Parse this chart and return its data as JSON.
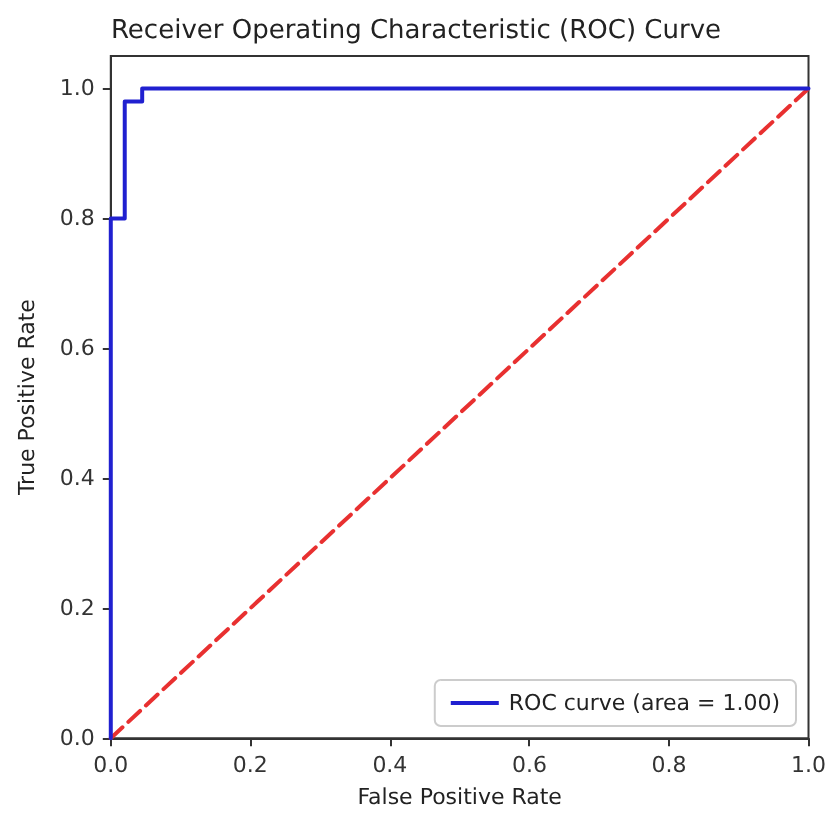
{
  "chart_data": {
    "type": "line",
    "title": "Receiver Operating Characteristic (ROC) Curve",
    "xlabel": "False Positive Rate",
    "ylabel": "True Positive Rate",
    "series": [
      {
        "name": "ROC curve (area = 1.00)",
        "color": "#2020d0",
        "x": [
          0,
          0,
          0.02,
          0.02,
          0.045,
          0.045,
          1
        ],
        "values": [
          0,
          0.8,
          0.8,
          0.98,
          0.98,
          1,
          1
        ],
        "line_style": "solid"
      },
      {
        "color": "#e83030",
        "x": [
          0,
          1
        ],
        "values": [
          0,
          1
        ],
        "line_style": "dashed"
      }
    ],
    "xlim": [
      0,
      1.0
    ],
    "ylim": [
      0,
      1.05
    ],
    "xticks": [
      {
        "value": 0,
        "label": "0.0"
      },
      0.2,
      0.4,
      0.6,
      0.8,
      {
        "value": 1,
        "label": "1.0"
      }
    ],
    "yticks": [
      {
        "value": 0,
        "label": "0.0"
      },
      0.2,
      0.4,
      0.6,
      0.8,
      {
        "value": 1,
        "label": "1.0"
      }
    ],
    "grid": false,
    "legend": "bottom right",
    "marker": "none"
  }
}
